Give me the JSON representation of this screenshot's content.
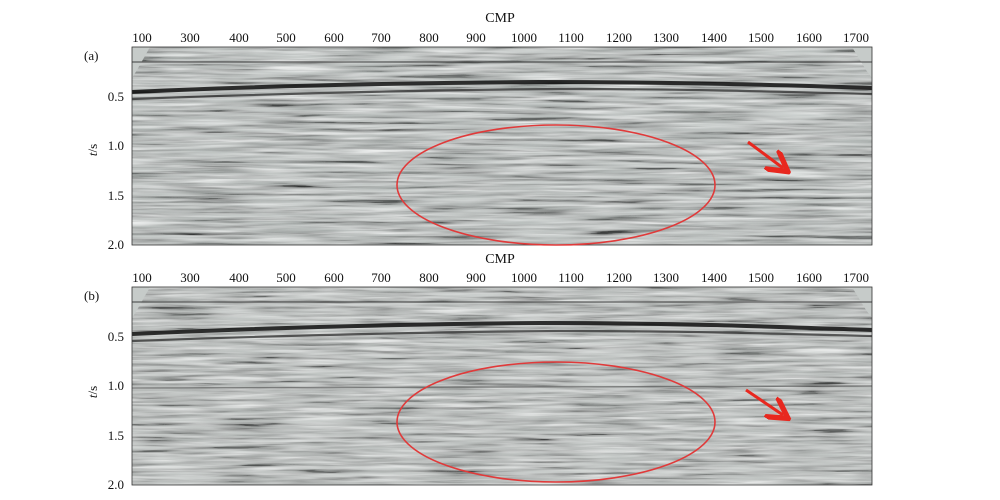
{
  "panels": [
    {
      "id": "a",
      "panel_label": "(a)",
      "xlabel": "CMP",
      "ylabel_var": "t",
      "ylabel_unit": "/s",
      "x_ticks": [
        "100",
        "300",
        "400",
        "500",
        "600",
        "700",
        "800",
        "900",
        "1000",
        "1100",
        "1200",
        "1300",
        "1400",
        "1500",
        "1600",
        "1700"
      ],
      "y_ticks": [
        "0.5",
        "1.0",
        "1.5",
        "2.0"
      ],
      "annotation_ellipse_color": "#e03a3a",
      "annotation_arrow_color": "#e8281f",
      "section_shading": "variable-density grey"
    },
    {
      "id": "b",
      "panel_label": "(b)",
      "xlabel": "CMP",
      "ylabel_var": "t",
      "ylabel_unit": "/s",
      "x_ticks": [
        "100",
        "300",
        "400",
        "500",
        "600",
        "700",
        "800",
        "900",
        "1000",
        "1100",
        "1200",
        "1300",
        "1400",
        "1500",
        "1600",
        "1700"
      ],
      "y_ticks": [
        "0.5",
        "1.0",
        "1.5",
        "2.0"
      ],
      "annotation_ellipse_color": "#e03a3a",
      "annotation_arrow_color": "#e8281f",
      "section_shading": "variable-density grey"
    }
  ]
}
